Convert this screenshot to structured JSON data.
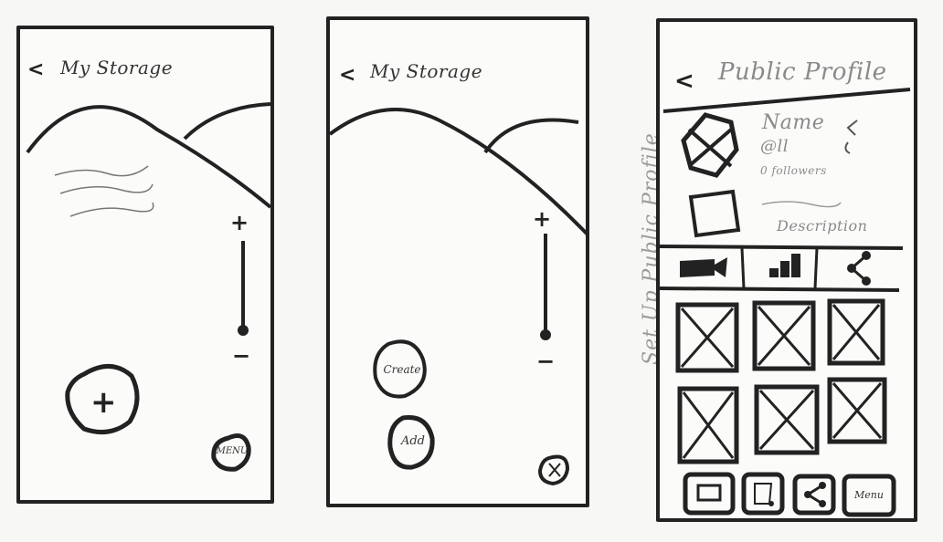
{
  "frame1": {
    "back_glyph": "<",
    "title": "My Storage",
    "zoom_in": "+",
    "zoom_out": "−",
    "add_button": "+",
    "menu_button": "MENU"
  },
  "frame2": {
    "back_glyph": "<",
    "title": "My Storage",
    "zoom_in": "+",
    "zoom_out": "−",
    "create_button": "Create",
    "add_button": "Add"
  },
  "frame3": {
    "back_glyph": "<",
    "title": "Public Profile",
    "name": "Name",
    "handle": "@ll",
    "followers": "0 followers",
    "description": "Description",
    "tabs": [
      {
        "icon": "video-camera-icon"
      },
      {
        "icon": "bar-chart-icon"
      },
      {
        "icon": "share-icon"
      }
    ],
    "grid_count": 6,
    "bottom_menu": "Menu"
  },
  "side_note": "Set Up Public Profile"
}
